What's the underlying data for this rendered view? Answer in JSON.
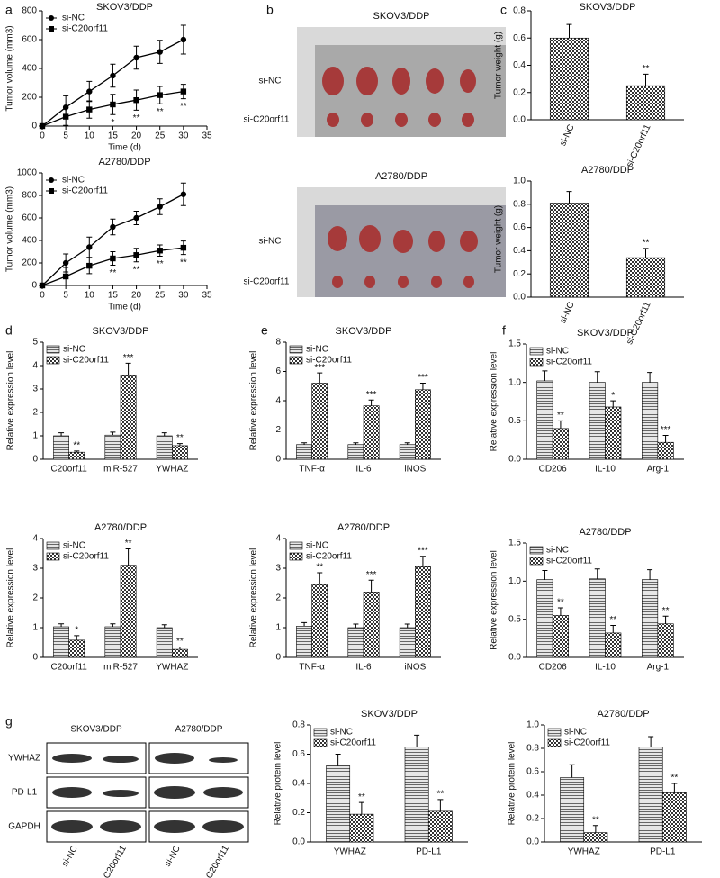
{
  "panel_labels": [
    "a",
    "b",
    "c",
    "d",
    "e",
    "f",
    "g"
  ],
  "photos": [
    {
      "title": "SKOV3/DDP",
      "rows": [
        "si-NC",
        "si-C20orf11"
      ]
    },
    {
      "title": "A2780/DDP",
      "rows": [
        "si-NC",
        "si-C20orf11"
      ]
    }
  ],
  "blot": {
    "cell_lines": [
      "SKOV3/DDP",
      "A2780/DDP"
    ],
    "proteins": [
      "YWHAZ",
      "PD-L1",
      "GAPDH"
    ],
    "lanes": [
      "si-NC",
      "si-C20orf11",
      "si-NC",
      "si-C20orf11"
    ]
  },
  "chart_data": [
    {
      "type": "line",
      "title": "SKOV3/DDP",
      "x_label": "Time (d)",
      "y_label": "Tumor volume (mm3)",
      "x": [
        0,
        5,
        10,
        15,
        20,
        25,
        30
      ],
      "series": [
        {
          "name": "si-NC",
          "color": "#000000",
          "marker": "circle",
          "values": [
            0,
            130,
            240,
            350,
            475,
            515,
            600
          ],
          "errors": [
            0,
            80,
            70,
            80,
            80,
            80,
            100
          ]
        },
        {
          "name": "si-C20orf11",
          "color": "#000000",
          "marker": "square",
          "values": [
            0,
            65,
            115,
            150,
            180,
            215,
            240
          ],
          "errors": [
            0,
            60,
            60,
            70,
            70,
            60,
            50
          ]
        }
      ],
      "annotations": [
        null,
        null,
        null,
        "*",
        "**",
        "**",
        "**"
      ],
      "xlim": [
        0,
        35
      ],
      "xticks": [
        0,
        5,
        10,
        15,
        20,
        25,
        30,
        35
      ],
      "ylim": [
        0,
        800
      ],
      "yticks": [
        0,
        200,
        400,
        600,
        800
      ]
    },
    {
      "type": "line",
      "title": "A2780/DDP",
      "x_label": "Time (d)",
      "y_label": "Tumor volume (mm3)",
      "x": [
        0,
        5,
        10,
        15,
        20,
        25,
        30
      ],
      "series": [
        {
          "name": "si-NC",
          "color": "#000000",
          "marker": "circle",
          "values": [
            0,
            200,
            340,
            520,
            600,
            700,
            810
          ],
          "errors": [
            0,
            80,
            90,
            70,
            60,
            70,
            100
          ]
        },
        {
          "name": "si-C20orf11",
          "color": "#000000",
          "marker": "square",
          "values": [
            0,
            80,
            175,
            240,
            270,
            310,
            335
          ],
          "errors": [
            0,
            80,
            70,
            60,
            60,
            50,
            60
          ]
        }
      ],
      "annotations": [
        null,
        null,
        null,
        "**",
        "**",
        "**",
        "**"
      ],
      "xlim": [
        0,
        35
      ],
      "xticks": [
        0,
        5,
        10,
        15,
        20,
        25,
        30,
        35
      ],
      "ylim": [
        0,
        1000
      ],
      "yticks": [
        0,
        200,
        400,
        600,
        800,
        1000
      ]
    },
    {
      "type": "bar",
      "title": "SKOV3/DDP",
      "y_label": "Tumor weight (g)",
      "categories": [
        "si-NC",
        "si-C20orf11"
      ],
      "values": [
        0.6,
        0.25
      ],
      "errors": [
        0.1,
        0.085
      ],
      "pattern": "checker",
      "rotate_categories": true,
      "annotations": [
        null,
        "**"
      ],
      "ylim": [
        0,
        0.8
      ],
      "yticks": [
        {
          "value": 0,
          "label": "0.0"
        },
        0.2,
        0.4,
        0.6,
        0.8
      ]
    },
    {
      "type": "bar",
      "title": "A2780/DDP",
      "y_label": "Tumor weight (g)",
      "categories": [
        "si-NC",
        "si-C20orf11"
      ],
      "values": [
        0.81,
        0.34
      ],
      "errors": [
        0.1,
        0.08
      ],
      "pattern": "checker",
      "rotate_categories": true,
      "annotations": [
        null,
        "**"
      ],
      "ylim": [
        0,
        1
      ],
      "yticks": [
        {
          "value": 0,
          "label": "0.0"
        },
        0.2,
        0.4,
        0.6,
        0.8,
        {
          "value": 1,
          "label": "1.0"
        }
      ]
    },
    {
      "type": "bar",
      "title": "SKOV3/DDP",
      "y_label": "Relative expression level",
      "categories": [
        "C20orf11",
        "miR-527",
        "YWHAZ"
      ],
      "series": [
        {
          "name": "si-NC",
          "pattern": "lines",
          "values": [
            1.0,
            1.03,
            1.0
          ],
          "errors": [
            0.13,
            0.13,
            0.13
          ]
        },
        {
          "name": "si-C20orf11",
          "pattern": "checker",
          "values": [
            0.3,
            3.6,
            0.58
          ],
          "errors": [
            0.05,
            0.5,
            0.09
          ]
        }
      ],
      "annotations": [
        "**",
        "***",
        "**"
      ],
      "ylim": [
        0,
        5
      ],
      "yticks": [
        0,
        1,
        2,
        3,
        4,
        5
      ]
    },
    {
      "type": "bar",
      "title": "A2780/DDP",
      "y_label": "Relative expression level",
      "categories": [
        "C20orf11",
        "miR-527",
        "YWHAZ"
      ],
      "series": [
        {
          "name": "si-NC",
          "pattern": "lines",
          "values": [
            1.03,
            1.03,
            1.0
          ],
          "errors": [
            0.1,
            0.1,
            0.1
          ]
        },
        {
          "name": "si-C20orf11",
          "pattern": "checker",
          "values": [
            0.58,
            3.1,
            0.27
          ],
          "errors": [
            0.15,
            0.55,
            0.08
          ]
        }
      ],
      "annotations": [
        "*",
        "**",
        "**"
      ],
      "ylim": [
        0,
        4
      ],
      "yticks": [
        0,
        1,
        2,
        3,
        4
      ]
    },
    {
      "type": "bar",
      "title": "SKOV3/DDP",
      "y_label": "Relative expression level",
      "categories": [
        "TNF-α",
        "IL-6",
        "iNOS"
      ],
      "series": [
        {
          "name": "si-NC",
          "pattern": "lines",
          "values": [
            1.0,
            1.0,
            1.0
          ],
          "errors": [
            0.12,
            0.12,
            0.12
          ]
        },
        {
          "name": "si-C20orf11",
          "pattern": "checker",
          "values": [
            5.2,
            3.65,
            4.75
          ],
          "errors": [
            0.7,
            0.4,
            0.45
          ]
        }
      ],
      "annotations": [
        "***",
        "***",
        "***"
      ],
      "ylim": [
        0,
        8
      ],
      "yticks": [
        0,
        2,
        4,
        6,
        8
      ]
    },
    {
      "type": "bar",
      "title": "A2780/DDP",
      "y_label": "Relative expression level",
      "categories": [
        "TNF-α",
        "IL-6",
        "iNOS"
      ],
      "series": [
        {
          "name": "si-NC",
          "pattern": "lines",
          "values": [
            1.05,
            1.0,
            1.0
          ],
          "errors": [
            0.12,
            0.12,
            0.12
          ]
        },
        {
          "name": "si-C20orf11",
          "pattern": "checker",
          "values": [
            2.45,
            2.2,
            3.05
          ],
          "errors": [
            0.4,
            0.4,
            0.35
          ]
        }
      ],
      "annotations": [
        "**",
        "***",
        "***"
      ],
      "ylim": [
        0,
        4
      ],
      "yticks": [
        0,
        1,
        2,
        3,
        4
      ]
    },
    {
      "type": "bar",
      "title": "SKOV3/DDP",
      "y_label": "Relative expression level",
      "categories": [
        "CD206",
        "IL-10",
        "Arg-1"
      ],
      "series": [
        {
          "name": "si-NC",
          "pattern": "lines",
          "values": [
            1.02,
            1.0,
            1.0
          ],
          "errors": [
            0.13,
            0.14,
            0.13
          ]
        },
        {
          "name": "si-C20orf11",
          "pattern": "checker",
          "values": [
            0.4,
            0.68,
            0.22
          ],
          "errors": [
            0.1,
            0.08,
            0.09
          ]
        }
      ],
      "annotations": [
        "**",
        "*",
        "***"
      ],
      "ylim": [
        0,
        1.5
      ],
      "yticks": [
        {
          "value": 0,
          "label": "0.0"
        },
        0.5,
        {
          "value": 1,
          "label": "1.0"
        },
        1.5
      ]
    },
    {
      "type": "bar",
      "title": "A2780/DDP",
      "y_label": "Relative expression level",
      "categories": [
        "CD206",
        "IL-10",
        "Arg-1"
      ],
      "series": [
        {
          "name": "si-NC",
          "pattern": "lines",
          "values": [
            1.02,
            1.03,
            1.02
          ],
          "errors": [
            0.12,
            0.13,
            0.13
          ]
        },
        {
          "name": "si-C20orf11",
          "pattern": "checker",
          "values": [
            0.55,
            0.32,
            0.44
          ],
          "errors": [
            0.1,
            0.1,
            0.1
          ]
        }
      ],
      "annotations": [
        "**",
        "**",
        "**"
      ],
      "ylim": [
        0,
        1.5
      ],
      "yticks": [
        {
          "value": 0,
          "label": "0.0"
        },
        0.5,
        {
          "value": 1,
          "label": "1.0"
        },
        1.5
      ]
    },
    {
      "type": "bar",
      "title": "SKOV3/DDP",
      "y_label": "Relative protein level",
      "categories": [
        "YWHAZ",
        "PD-L1"
      ],
      "series": [
        {
          "name": "si-NC",
          "pattern": "lines",
          "values": [
            0.52,
            0.65
          ],
          "errors": [
            0.08,
            0.08
          ]
        },
        {
          "name": "si-C20orf11",
          "pattern": "checker",
          "values": [
            0.19,
            0.21
          ],
          "errors": [
            0.08,
            0.08
          ]
        }
      ],
      "annotations": [
        "**",
        "**"
      ],
      "ylim": [
        0,
        0.8
      ],
      "yticks": [
        {
          "value": 0,
          "label": "0.0"
        },
        0.2,
        0.4,
        0.6,
        0.8
      ]
    },
    {
      "type": "bar",
      "title": "A2780/DDP",
      "y_label": "Relative protein level",
      "categories": [
        "YWHAZ",
        "PD-L1"
      ],
      "series": [
        {
          "name": "si-NC",
          "pattern": "lines",
          "values": [
            0.55,
            0.81
          ],
          "errors": [
            0.11,
            0.09
          ]
        },
        {
          "name": "si-C20orf11",
          "pattern": "checker",
          "values": [
            0.08,
            0.42
          ],
          "errors": [
            0.06,
            0.08
          ]
        }
      ],
      "annotations": [
        "**",
        "**"
      ],
      "ylim": [
        0,
        1
      ],
      "yticks": [
        {
          "value": 0,
          "label": "0.0"
        },
        0.2,
        0.4,
        0.6,
        0.8,
        {
          "value": 1,
          "label": "1.0"
        }
      ]
    }
  ]
}
